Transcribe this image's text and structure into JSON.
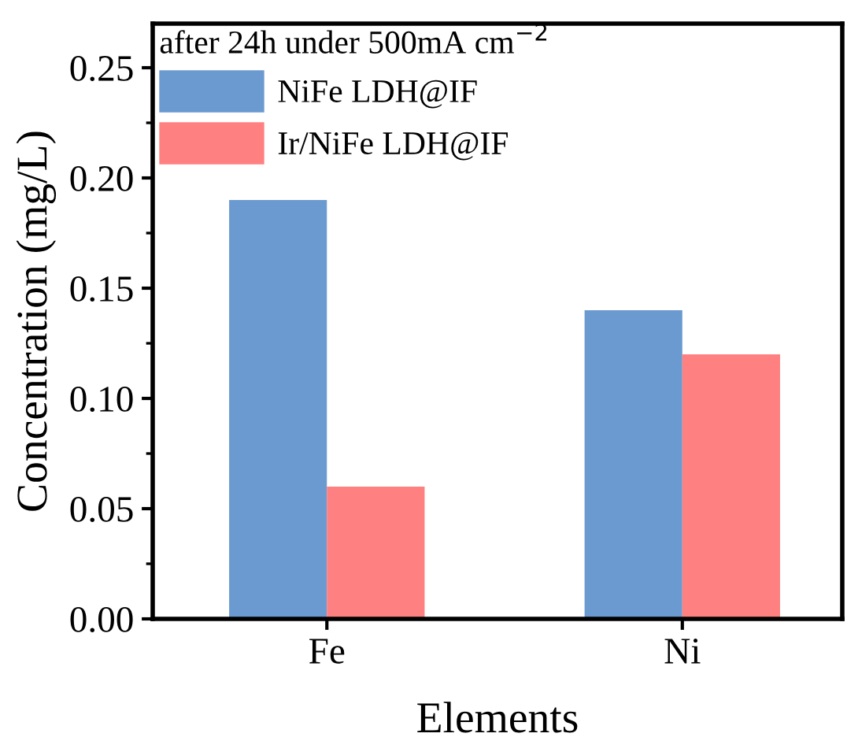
{
  "chart_data": {
    "type": "bar",
    "xlabel": "Elements",
    "ylabel": "Concentration (mg/L)",
    "legend_title": "after 24h under 500mA cm$^{−2}$",
    "categories": [
      "Fe",
      "Ni"
    ],
    "series": [
      {
        "name": "NiFe LDH@IF",
        "color": "#6a9ad0",
        "values": [
          0.19,
          0.14
        ]
      },
      {
        "name": "Ir/NiFe LDH@IF",
        "color": "#ff8080",
        "values": [
          0.06,
          0.12
        ]
      }
    ],
    "ylim": [
      0,
      0.27
    ],
    "yticks": [
      {
        "value": 0,
        "label": "0.00"
      },
      {
        "value": 0.05,
        "label": "0.05"
      },
      {
        "value": 0.1,
        "label": "0.10"
      },
      {
        "value": 0.15,
        "label": "0.15"
      },
      {
        "value": 0.2,
        "label": "0.20"
      },
      {
        "value": 0.25,
        "label": "0.25"
      }
    ],
    "grid": false,
    "legend": "top left"
  }
}
